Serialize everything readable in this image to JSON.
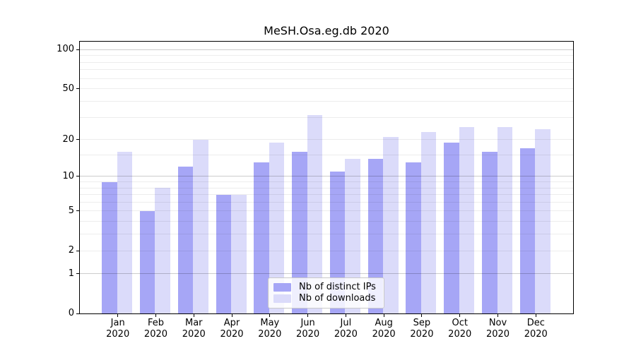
{
  "title": "MeSH.Osa.eg.db 2020",
  "chart_data": {
    "type": "bar",
    "title": "MeSH.Osa.eg.db 2020",
    "yscale": "log1p",
    "ylim": [
      0,
      115
    ],
    "grid": true,
    "legend_position": "lower center",
    "year": "2020",
    "categories": [
      "Jan",
      "Feb",
      "Mar",
      "Apr",
      "May",
      "Jun",
      "Jul",
      "Aug",
      "Sep",
      "Oct",
      "Nov",
      "Dec"
    ],
    "series": [
      {
        "name": "Nb of distinct IPs",
        "color": "#a6a6f6",
        "values": [
          9,
          5,
          12,
          7,
          13,
          16,
          11,
          14,
          13,
          19,
          16,
          17
        ]
      },
      {
        "name": "Nb of downloads",
        "color": "#dbdbfa",
        "values": [
          16,
          8,
          20,
          7,
          19,
          31,
          14,
          21,
          23,
          25,
          25,
          24
        ]
      }
    ],
    "yticks": [
      0,
      1,
      2,
      5,
      10,
      20,
      50,
      100
    ],
    "minor_yticks": [
      3,
      4,
      6,
      7,
      8,
      9,
      15,
      30,
      40,
      60,
      70,
      80,
      90
    ],
    "major_gridlines": [
      1,
      10,
      100
    ]
  }
}
